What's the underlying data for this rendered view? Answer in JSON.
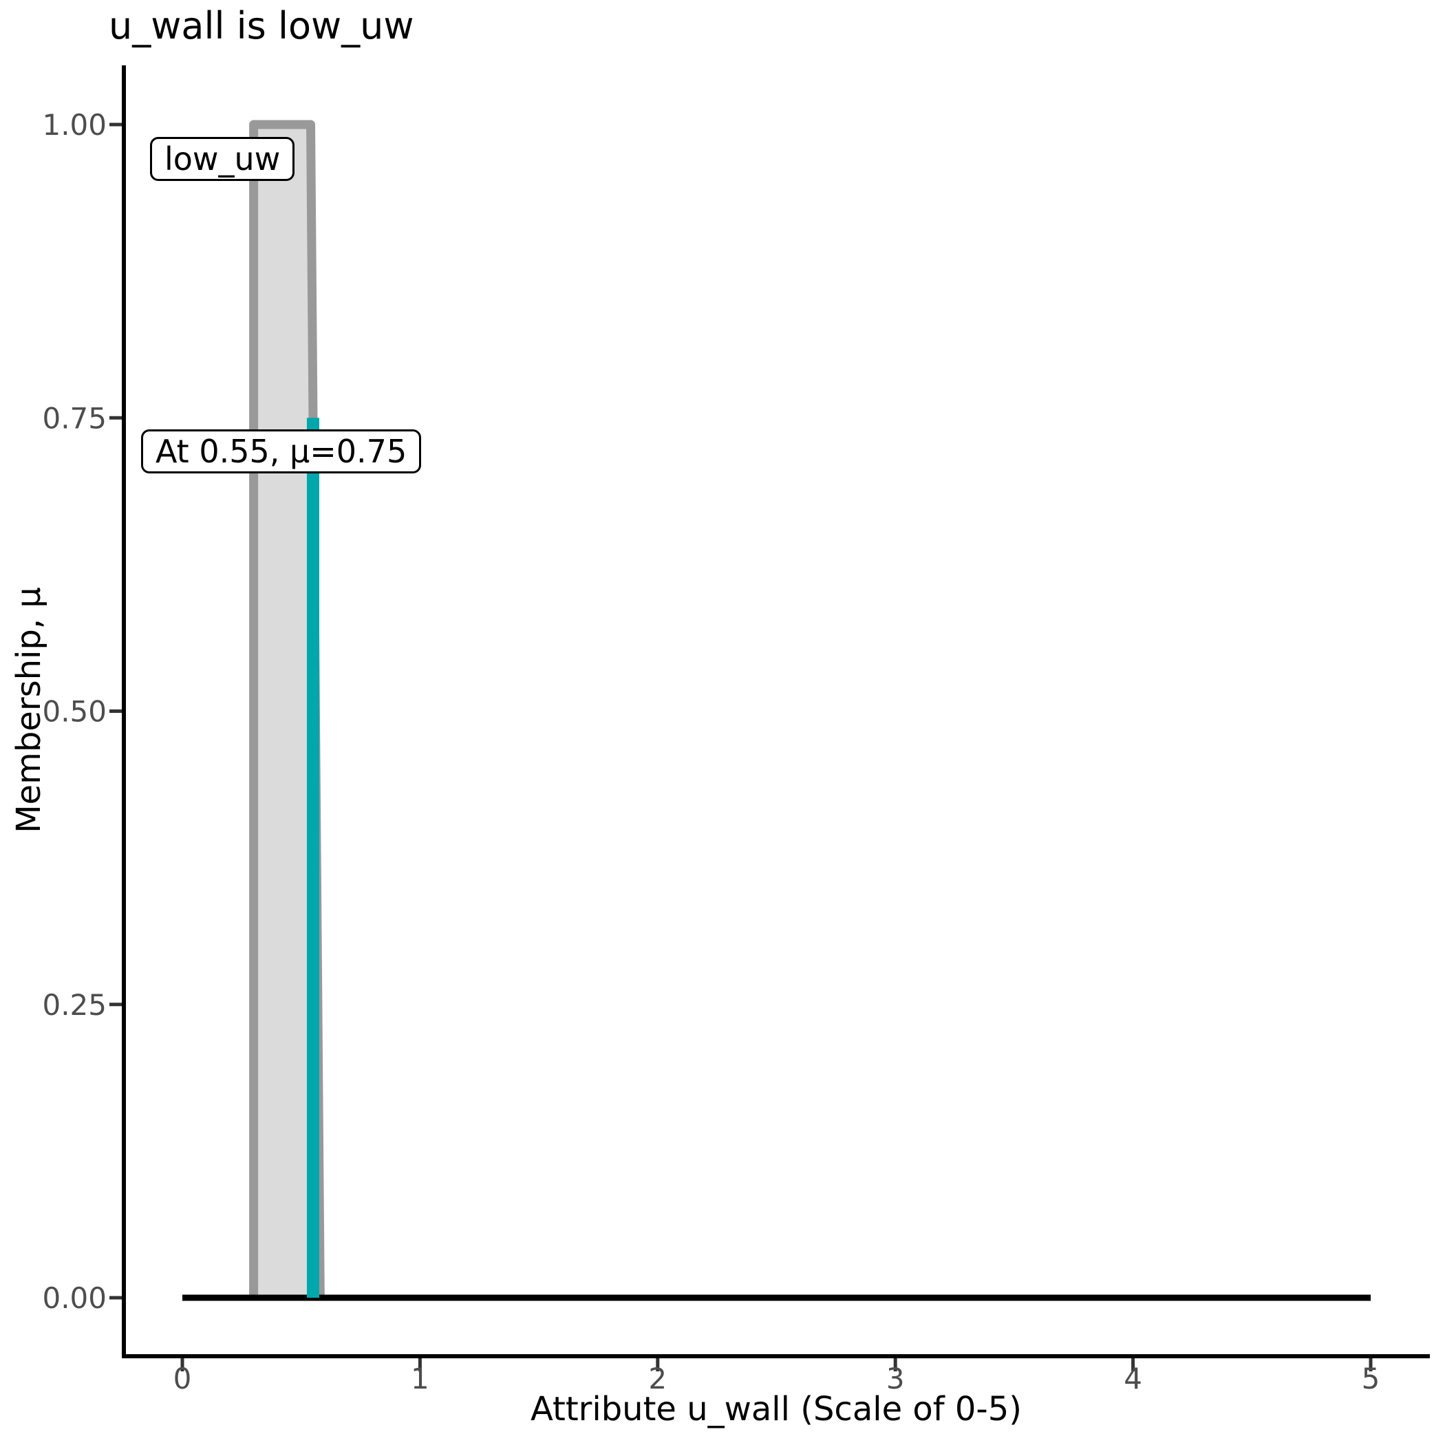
{
  "chart_data": {
    "type": "area",
    "title": "u_wall is low_uw",
    "xlabel": "Attribute u_wall (Scale of 0-5)",
    "ylabel": "Membership, μ",
    "xlim": [
      0,
      5
    ],
    "ylim": [
      0,
      1
    ],
    "grid": false,
    "legend": false,
    "x_ticks": [
      {
        "value": 0,
        "label": "0"
      },
      {
        "value": 1,
        "label": "1"
      },
      {
        "value": 2,
        "label": "2"
      },
      {
        "value": 3,
        "label": "3"
      },
      {
        "value": 4,
        "label": "4"
      },
      {
        "value": 5,
        "label": "5"
      }
    ],
    "y_ticks": [
      {
        "value": 0.0,
        "label": "0.00"
      },
      {
        "value": 0.25,
        "label": "0.25"
      },
      {
        "value": 0.5,
        "label": "0.50"
      },
      {
        "value": 0.75,
        "label": "0.75"
      },
      {
        "value": 1.0,
        "label": "1.00"
      }
    ],
    "membership_function": {
      "name": "low_uw",
      "shape": "trapezoid",
      "points": [
        [
          0.3,
          0
        ],
        [
          0.3,
          1
        ],
        [
          0.54,
          1
        ],
        [
          0.58,
          0
        ]
      ],
      "fill_color": "#DBDBDB",
      "stroke_color": "#999999",
      "stroke_width": 13
    },
    "baseline": {
      "mu": 0,
      "x_from": 0,
      "x_to": 5,
      "color": "#000000",
      "width": 9
    },
    "highlight": {
      "x": 0.55,
      "mu": 0.75,
      "color": "#00A7AC",
      "width": 18
    },
    "annotations": [
      {
        "text": "low_uw"
      },
      {
        "text": "At 0.55, μ=0.75"
      }
    ],
    "colors": {
      "spine": "#000000",
      "tick_mark": "#333333",
      "tick_label": "#4d4d4d",
      "text": "#000000",
      "background": "#ffffff"
    }
  }
}
